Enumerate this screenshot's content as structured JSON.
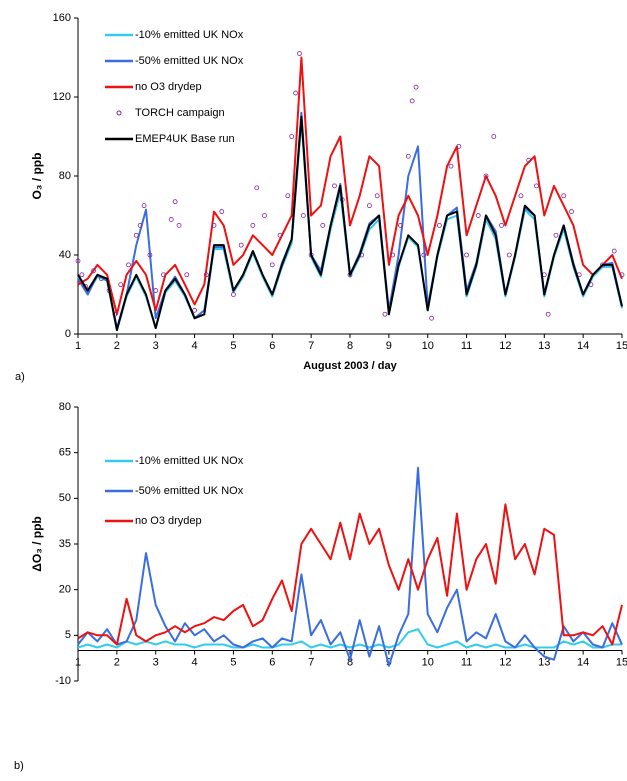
{
  "chart_data": [
    {
      "type": "line",
      "panel_label": "a)",
      "xlabel": "August 2003 / day",
      "ylabel": "O₃ / ppb",
      "xlim": [
        1,
        15
      ],
      "xticks": [
        1,
        2,
        3,
        4,
        5,
        6,
        7,
        8,
        9,
        10,
        11,
        12,
        13,
        14,
        15
      ],
      "ylim": [
        0,
        160
      ],
      "yticks": [
        0,
        40,
        80,
        120,
        160
      ],
      "x": [
        1,
        1.25,
        1.5,
        1.75,
        2,
        2.25,
        2.5,
        2.75,
        3,
        3.25,
        3.5,
        3.75,
        4,
        4.25,
        4.5,
        4.75,
        5,
        5.25,
        5.5,
        5.75,
        6,
        6.25,
        6.5,
        6.75,
        7,
        7.25,
        7.5,
        7.75,
        8,
        8.25,
        8.5,
        8.75,
        9,
        9.25,
        9.5,
        9.75,
        10,
        10.25,
        10.5,
        10.75,
        11,
        11.25,
        11.5,
        11.75,
        12,
        12.25,
        12.5,
        12.75,
        13,
        13.25,
        13.5,
        13.75,
        14,
        14.25,
        14.5,
        14.75,
        15
      ],
      "series": [
        {
          "name": "-10% emitted UK NOx",
          "color": "#33ccee",
          "values": [
            29,
            21,
            29,
            27,
            2,
            19,
            29,
            19,
            3,
            21,
            27,
            19,
            8,
            10,
            43,
            43,
            21,
            29,
            41,
            29,
            19,
            34,
            46,
            108,
            39,
            29,
            53,
            72,
            29,
            39,
            53,
            58,
            10,
            34,
            49,
            44,
            12,
            39,
            58,
            60,
            19,
            34,
            58,
            48,
            19,
            39,
            63,
            58,
            19,
            39,
            53,
            34,
            19,
            29,
            34,
            34,
            13
          ]
        },
        {
          "name": "-50% emitted UK NOx",
          "color": "#3a6ee0",
          "values": [
            28,
            20,
            30,
            27,
            3,
            20,
            45,
            63,
            8,
            22,
            29,
            20,
            8,
            12,
            44,
            44,
            22,
            30,
            42,
            30,
            20,
            36,
            48,
            112,
            40,
            32,
            55,
            76,
            30,
            41,
            56,
            60,
            12,
            40,
            80,
            95,
            14,
            40,
            60,
            64,
            22,
            36,
            60,
            52,
            20,
            40,
            64,
            60,
            20,
            40,
            55,
            36,
            20,
            30,
            35,
            36,
            14
          ]
        },
        {
          "name": "no O3 drydep",
          "color": "#ee1111",
          "values": [
            25,
            28,
            35,
            30,
            10,
            30,
            37,
            30,
            12,
            30,
            35,
            25,
            15,
            25,
            62,
            55,
            35,
            40,
            50,
            45,
            40,
            50,
            60,
            140,
            60,
            65,
            90,
            100,
            55,
            70,
            90,
            85,
            35,
            60,
            70,
            60,
            40,
            60,
            85,
            95,
            50,
            65,
            80,
            70,
            55,
            70,
            85,
            90,
            60,
            75,
            65,
            55,
            35,
            30,
            35,
            40,
            28
          ]
        },
        {
          "name": "TORCH campaign",
          "type": "scatter",
          "color": "#882299",
          "x": [
            1,
            1.1,
            1.2,
            1.4,
            1.6,
            1.8,
            1.95,
            2.1,
            2.3,
            2.5,
            2.6,
            2.7,
            2.85,
            3,
            3.2,
            3.4,
            3.5,
            3.6,
            3.8,
            4,
            4.3,
            4.5,
            4.7,
            5,
            5.2,
            5.5,
            5.6,
            5.8,
            6,
            6.2,
            6.4,
            6.5,
            6.6,
            6.7,
            6.8,
            7,
            7.3,
            7.6,
            7.8,
            8,
            8.3,
            8.5,
            8.7,
            8.9,
            9.1,
            9.3,
            9.5,
            9.6,
            9.7,
            9.9,
            10.1,
            10.3,
            10.6,
            10.8,
            11,
            11.3,
            11.5,
            11.7,
            11.9,
            12.1,
            12.4,
            12.6,
            12.8,
            13,
            13.1,
            13.3,
            13.5,
            13.7,
            13.9,
            14.2,
            14.5,
            14.8,
            15
          ],
          "values": [
            37,
            30,
            24,
            32,
            28,
            22,
            10,
            25,
            35,
            50,
            55,
            65,
            40,
            22,
            30,
            58,
            67,
            55,
            30,
            12,
            30,
            55,
            62,
            20,
            45,
            55,
            74,
            60,
            35,
            50,
            70,
            100,
            122,
            142,
            60,
            40,
            55,
            75,
            68,
            30,
            40,
            65,
            70,
            10,
            40,
            55,
            90,
            118,
            125,
            40,
            8,
            55,
            85,
            95,
            40,
            60,
            80,
            100,
            55,
            40,
            70,
            88,
            75,
            30,
            10,
            50,
            70,
            62,
            30,
            25,
            35,
            42,
            30
          ]
        },
        {
          "name": "EMEP4UK Base run",
          "color": "#000000",
          "values": [
            30,
            22,
            30,
            28,
            2,
            20,
            30,
            20,
            3,
            22,
            28,
            20,
            8,
            10,
            45,
            45,
            22,
            30,
            42,
            30,
            20,
            35,
            48,
            110,
            40,
            30,
            55,
            75,
            30,
            40,
            55,
            60,
            10,
            35,
            50,
            45,
            12,
            40,
            60,
            62,
            20,
            35,
            60,
            50,
            20,
            40,
            65,
            60,
            20,
            40,
            55,
            35,
            20,
            30,
            35,
            35,
            14
          ]
        }
      ]
    },
    {
      "type": "line",
      "panel_label": "b)",
      "ylabel": "ΔO₃ / ppb",
      "xlim": [
        1,
        15
      ],
      "xticks": [
        1,
        2,
        3,
        4,
        5,
        6,
        7,
        8,
        9,
        10,
        11,
        12,
        13,
        14,
        15
      ],
      "ylim": [
        -10,
        80
      ],
      "yticks": [
        -10,
        5,
        20,
        35,
        50,
        65,
        80
      ],
      "x": [
        1,
        1.25,
        1.5,
        1.75,
        2,
        2.25,
        2.5,
        2.75,
        3,
        3.25,
        3.5,
        3.75,
        4,
        4.25,
        4.5,
        4.75,
        5,
        5.25,
        5.5,
        5.75,
        6,
        6.25,
        6.5,
        6.75,
        7,
        7.25,
        7.5,
        7.75,
        8,
        8.25,
        8.5,
        8.75,
        9,
        9.25,
        9.5,
        9.75,
        10,
        10.25,
        10.5,
        10.75,
        11,
        11.25,
        11.5,
        11.75,
        12,
        12.25,
        12.5,
        12.75,
        13,
        13.25,
        13.5,
        13.75,
        14,
        14.25,
        14.5,
        14.75,
        15
      ],
      "series": [
        {
          "name": "-10% emitted UK NOx",
          "color": "#33ccee",
          "values": [
            1,
            2,
            1,
            2,
            1,
            3,
            2,
            3,
            2,
            3,
            2,
            2,
            1,
            2,
            2,
            2,
            1,
            1,
            2,
            1,
            1,
            2,
            2,
            3,
            1,
            2,
            1,
            2,
            1,
            2,
            1,
            2,
            1,
            2,
            6,
            7,
            2,
            1,
            2,
            3,
            1,
            2,
            1,
            2,
            1,
            1,
            2,
            1,
            1,
            1,
            3,
            2,
            3,
            1,
            1,
            2,
            2
          ]
        },
        {
          "name": "-50% emitted UK NOx",
          "color": "#3a6ee0",
          "values": [
            2,
            6,
            3,
            7,
            2,
            3,
            10,
            32,
            15,
            8,
            3,
            9,
            5,
            7,
            3,
            5,
            2,
            1,
            3,
            4,
            1,
            4,
            3,
            25,
            5,
            10,
            2,
            6,
            -3,
            10,
            -2,
            8,
            -5,
            5,
            12,
            60,
            12,
            6,
            14,
            20,
            3,
            6,
            4,
            12,
            3,
            1,
            5,
            1,
            -2,
            -3,
            8,
            3,
            6,
            2,
            1,
            9,
            2
          ]
        },
        {
          "name": "no O3 drydep",
          "color": "#ee1111",
          "values": [
            4,
            6,
            5,
            5,
            2,
            17,
            5,
            3,
            5,
            6,
            8,
            6,
            8,
            9,
            11,
            10,
            13,
            15,
            8,
            10,
            17,
            23,
            13,
            35,
            40,
            35,
            30,
            42,
            30,
            45,
            35,
            40,
            28,
            20,
            30,
            20,
            30,
            37,
            18,
            45,
            20,
            30,
            35,
            22,
            48,
            30,
            35,
            25,
            40,
            38,
            5,
            5,
            6,
            5,
            8,
            2,
            15
          ]
        }
      ]
    }
  ]
}
